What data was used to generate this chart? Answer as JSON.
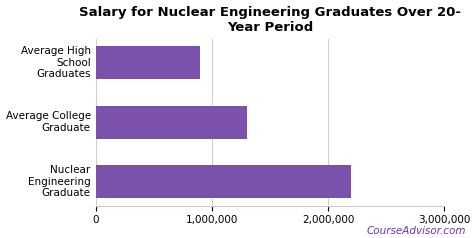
{
  "title": "Salary for Nuclear Engineering Graduates Over 20-\nYear Period",
  "categories": [
    "Nuclear\nEngineering\nGraduate",
    "Average College\nGraduate",
    "Average High\nSchool\nGraduates"
  ],
  "values": [
    2200000,
    1300000,
    900000
  ],
  "bar_color": "#7b52ab",
  "xlim": [
    0,
    3000000
  ],
  "xticks": [
    0,
    1000000,
    2000000,
    3000000
  ],
  "watermark": "CourseAdvisor.com",
  "watermark_color": "#6633cc",
  "background_color": "#ffffff",
  "title_fontsize": 9.5,
  "tick_fontsize": 7.5,
  "bar_height": 0.55,
  "figsize": [
    4.76,
    2.38
  ]
}
